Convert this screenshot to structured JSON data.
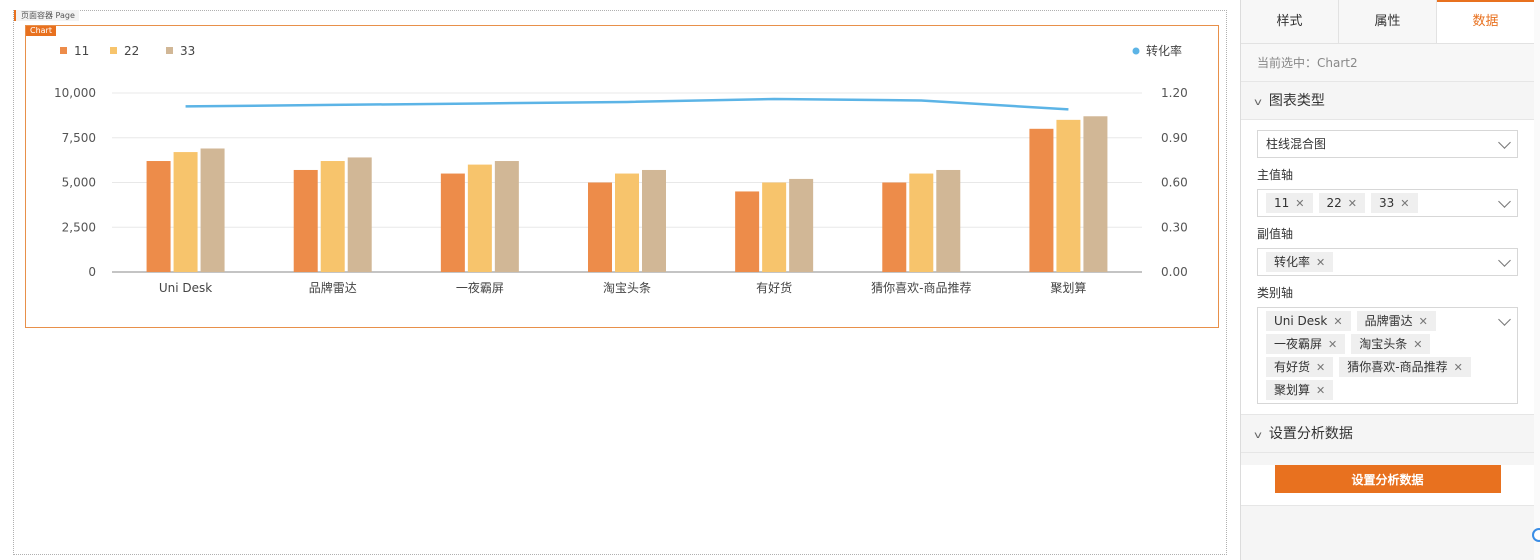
{
  "canvas": {
    "page_label": "页面容器 Page",
    "chart_label": "Chart"
  },
  "panel": {
    "tabs": [
      {
        "label": "样式",
        "active": false
      },
      {
        "label": "属性",
        "active": false
      },
      {
        "label": "数据",
        "active": true
      }
    ],
    "current_selection": "当前选中：Chart2",
    "section_chart_type": {
      "title": "图表类型",
      "chart_type_value": "柱线混合图",
      "primary_axis_label": "主值轴",
      "primary_axis_tags": [
        "11",
        "22",
        "33"
      ],
      "secondary_axis_label": "副值轴",
      "secondary_axis_tags": [
        "转化率"
      ],
      "category_axis_label": "类别轴",
      "category_axis_tags": [
        "Uni Desk",
        "品牌雷达",
        "一夜霸屏",
        "淘宝头条",
        "有好货",
        "猜你喜欢-商品推荐",
        "聚划算"
      ]
    },
    "section_analysis": {
      "title": "设置分析数据",
      "button_label": "设置分析数据"
    }
  },
  "colors": {
    "accent": "#e8711f",
    "series_11": "#ed8c4a",
    "series_22": "#f7c46c",
    "series_33": "#d1b796",
    "line": "#5cb4e6"
  },
  "chart_data": {
    "type": "bar",
    "categories": [
      "Uni Desk",
      "品牌雷达",
      "一夜霸屏",
      "淘宝头条",
      "有好货",
      "猜你喜欢-商品推荐",
      "聚划算"
    ],
    "series": [
      {
        "name": "11",
        "values": [
          6200,
          5700,
          5500,
          5000,
          4500,
          5000,
          8000
        ]
      },
      {
        "name": "22",
        "values": [
          6700,
          6200,
          6000,
          5500,
          5000,
          5500,
          8500
        ]
      },
      {
        "name": "33",
        "values": [
          6900,
          6400,
          6200,
          5700,
          5200,
          5700,
          8700
        ]
      }
    ],
    "line_series": {
      "name": "转化率",
      "values": [
        1.11,
        1.12,
        1.13,
        1.14,
        1.16,
        1.15,
        1.09
      ]
    },
    "ylim": [
      0,
      10000
    ],
    "y_ticks": [
      "10,000",
      "7,500",
      "5,000",
      "2,500",
      "0"
    ],
    "y2lim": [
      0,
      1.2
    ],
    "y2_ticks": [
      "1.20",
      "0.90",
      "0.60",
      "0.30",
      "0.00"
    ],
    "legend_position": "top",
    "grid": true
  }
}
